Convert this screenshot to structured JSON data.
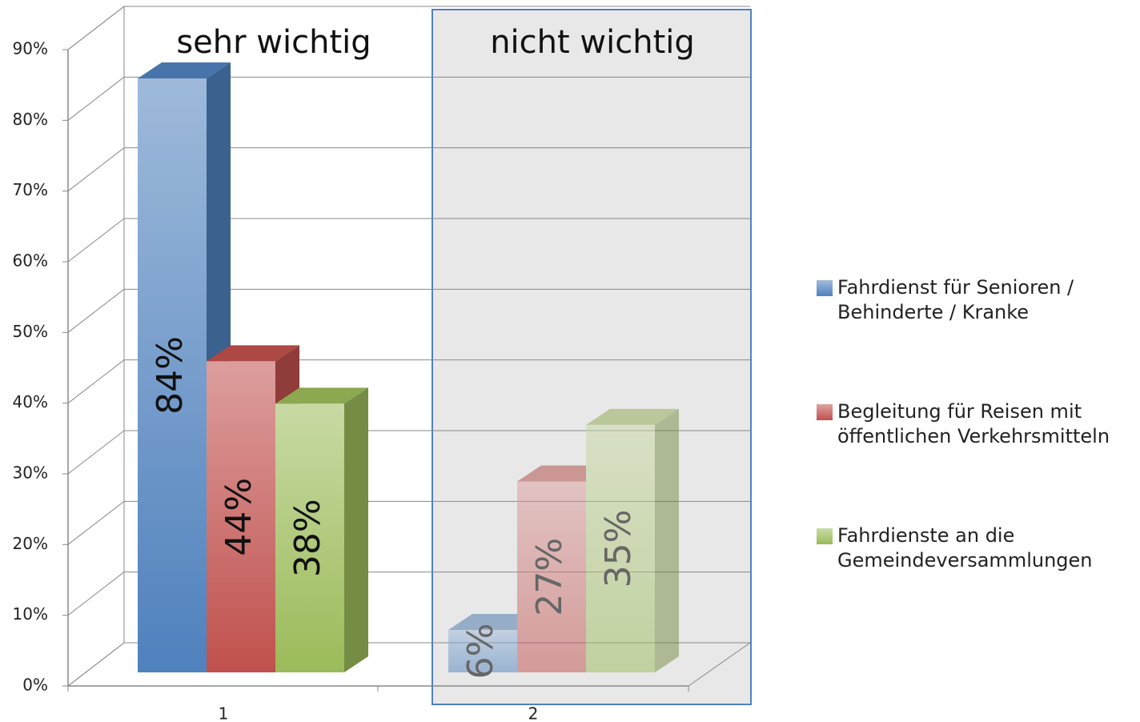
{
  "chart_data": {
    "type": "bar3d",
    "annotations": [
      "sehr wichtig",
      "nicht wichtig"
    ],
    "categories": [
      "1",
      "2"
    ],
    "series": [
      {
        "name": "Fahrdienst für Senioren / Behinderte / Kranke",
        "color": "#4f81bd",
        "values": [
          84,
          6
        ],
        "value_labels": [
          "84%",
          "6%"
        ]
      },
      {
        "name": "Begleitung für Reisen mit öffentlichen Verkehrsmitteln",
        "color": "#c0504d",
        "values": [
          44,
          27
        ],
        "value_labels": [
          "44%",
          "27%"
        ]
      },
      {
        "name": "Fahrdienste an die Gemeindeversammlungen",
        "color": "#9bbb59",
        "values": [
          38,
          35
        ],
        "value_labels": [
          "38%",
          "35%"
        ]
      }
    ],
    "ylim": [
      0,
      90
    ],
    "yticks": [
      {
        "value": 0,
        "label": "0%"
      },
      {
        "value": 10,
        "label": "10%"
      },
      {
        "value": 20,
        "label": "20%"
      },
      {
        "value": 30,
        "label": "30%"
      },
      {
        "value": 40,
        "label": "40%"
      },
      {
        "value": 50,
        "label": "50%"
      },
      {
        "value": 60,
        "label": "60%"
      },
      {
        "value": 70,
        "label": "70%"
      },
      {
        "value": 80,
        "label": "80%"
      },
      {
        "value": 90,
        "label": "90%"
      }
    ],
    "grid": true,
    "legend": "right"
  }
}
